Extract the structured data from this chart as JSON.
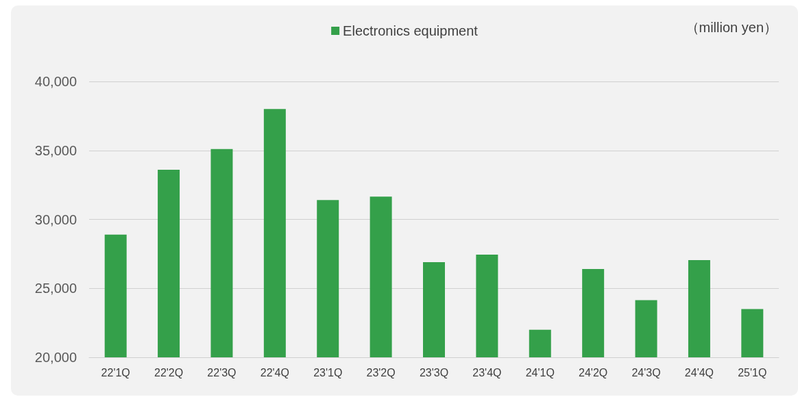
{
  "chart_data": {
    "type": "bar",
    "categories": [
      "22'1Q",
      "22'2Q",
      "22'3Q",
      "22'4Q",
      "23'1Q",
      "23'2Q",
      "23'3Q",
      "23'4Q",
      "24'1Q",
      "24'2Q",
      "24'3Q",
      "24'4Q",
      "25'1Q"
    ],
    "series": [
      {
        "name": "Electronics equipment",
        "color": "#34a04a",
        "values": [
          28900,
          33600,
          35100,
          38000,
          31400,
          31650,
          26900,
          27450,
          22000,
          26400,
          24150,
          27050,
          23500
        ]
      }
    ],
    "ylim": [
      20000,
      40000
    ],
    "yticks": [
      {
        "value": 20000,
        "label": "20,000"
      },
      {
        "value": 25000,
        "label": "25,000"
      },
      {
        "value": 30000,
        "label": "30,000"
      },
      {
        "value": 35000,
        "label": "35,000"
      },
      {
        "value": 40000,
        "label": "40,000"
      }
    ],
    "grid": "y",
    "legend": "top",
    "annotations": [
      "（million yen）"
    ]
  }
}
